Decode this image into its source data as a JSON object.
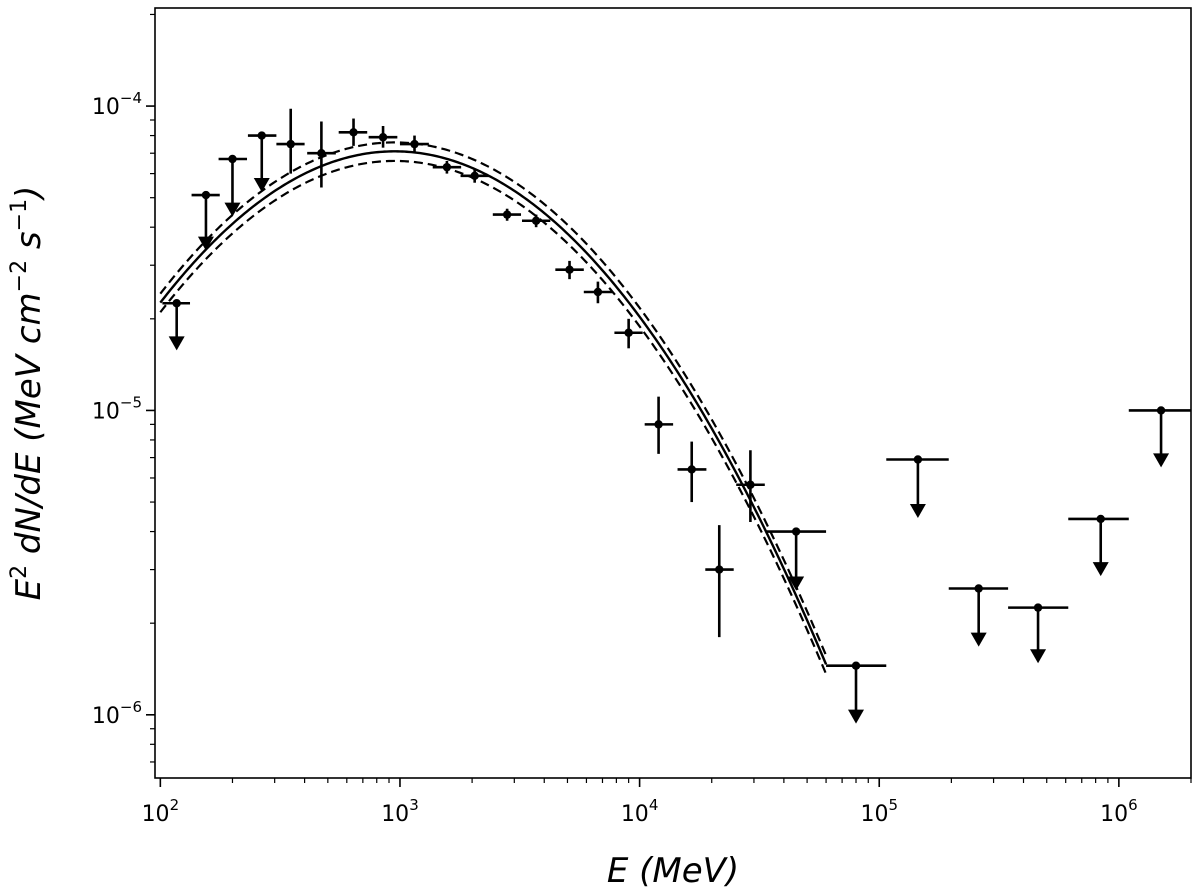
{
  "chart_data": {
    "type": "scatter",
    "title": "",
    "xlabel": "E (MeV)",
    "ylabel": "E² dN/dE (MeV cm⁻² s⁻¹)",
    "xlabel_parts": {
      "var": "E",
      "units": "(MeV)"
    },
    "ylabel_parts": {
      "pre": "E",
      "pre_sup": "2",
      "mid": " dN/dE (MeV cm",
      "sup1": "−2",
      "mid2": " s",
      "sup2": "−1",
      "post": ")"
    },
    "xscale": "log",
    "yscale": "log",
    "xlim": [
      95,
      2000000
    ],
    "ylim": [
      6.2e-07,
      0.00021
    ],
    "grid": false,
    "x_ticks": [
      {
        "value": 100,
        "base": "10",
        "exp": "2"
      },
      {
        "value": 1000,
        "base": "10",
        "exp": "3"
      },
      {
        "value": 10000,
        "base": "10",
        "exp": "4"
      },
      {
        "value": 100000,
        "base": "10",
        "exp": "5"
      },
      {
        "value": 1000000,
        "base": "10",
        "exp": "6"
      }
    ],
    "y_ticks": [
      {
        "value": 1e-06,
        "base": "10",
        "exp": "−6"
      },
      {
        "value": 1e-05,
        "base": "10",
        "exp": "−5"
      },
      {
        "value": 0.0001,
        "base": "10",
        "exp": "−4"
      }
    ],
    "model": {
      "type": "log-parabola",
      "peak_energy": 950,
      "peak_flux": 7.1e-05,
      "curvature": 0.52,
      "band_fraction": 0.07,
      "x_range": [
        100,
        60000
      ]
    },
    "points": [
      {
        "x": 117,
        "y": 2.25e-05,
        "xlo": 102,
        "xhi": 133,
        "ylo": 1.6e-05,
        "yhi": 2.3e-05,
        "ul": true
      },
      {
        "x": 155,
        "y": 5.1e-05,
        "xlo": 135,
        "xhi": 177,
        "ylo": 3.4e-05,
        "yhi": 5.2e-05,
        "ul": true
      },
      {
        "x": 200,
        "y": 6.7e-05,
        "xlo": 175,
        "xhi": 230,
        "ylo": 4.4e-05,
        "yhi": 6.8e-05,
        "ul": true
      },
      {
        "x": 265,
        "y": 8e-05,
        "xlo": 232,
        "xhi": 305,
        "ylo": 5.3e-05,
        "yhi": 8.1e-05,
        "ul": true
      },
      {
        "x": 350,
        "y": 7.5e-05,
        "xlo": 305,
        "xhi": 400,
        "ylo": 6e-05,
        "yhi": 9.8e-05,
        "ul": false
      },
      {
        "x": 470,
        "y": 7e-05,
        "xlo": 410,
        "xhi": 540,
        "ylo": 5.4e-05,
        "yhi": 8.9e-05,
        "ul": false
      },
      {
        "x": 640,
        "y": 8.2e-05,
        "xlo": 555,
        "xhi": 730,
        "ylo": 7.4e-05,
        "yhi": 9.1e-05,
        "ul": false
      },
      {
        "x": 850,
        "y": 7.9e-05,
        "xlo": 740,
        "xhi": 975,
        "ylo": 7.3e-05,
        "yhi": 8.6e-05,
        "ul": false
      },
      {
        "x": 1150,
        "y": 7.5e-05,
        "xlo": 1000,
        "xhi": 1320,
        "ylo": 7e-05,
        "yhi": 8e-05,
        "ul": false
      },
      {
        "x": 1570,
        "y": 6.3e-05,
        "xlo": 1370,
        "xhi": 1800,
        "ylo": 6e-05,
        "yhi": 6.6e-05,
        "ul": false
      },
      {
        "x": 2050,
        "y": 5.9e-05,
        "xlo": 1790,
        "xhi": 2350,
        "ylo": 5.6e-05,
        "yhi": 6.2e-05,
        "ul": false
      },
      {
        "x": 2800,
        "y": 4.4e-05,
        "xlo": 2440,
        "xhi": 3200,
        "ylo": 4.2e-05,
        "yhi": 4.6e-05,
        "ul": false
      },
      {
        "x": 3700,
        "y": 4.2e-05,
        "xlo": 3230,
        "xhi": 4240,
        "ylo": 4e-05,
        "yhi": 4.4e-05,
        "ul": false
      },
      {
        "x": 5100,
        "y": 2.9e-05,
        "xlo": 4450,
        "xhi": 5850,
        "ylo": 2.7e-05,
        "yhi": 3.1e-05,
        "ul": false
      },
      {
        "x": 6700,
        "y": 2.45e-05,
        "xlo": 5850,
        "xhi": 7700,
        "ylo": 2.25e-05,
        "yhi": 2.65e-05,
        "ul": false
      },
      {
        "x": 9000,
        "y": 1.8e-05,
        "xlo": 7850,
        "xhi": 10300,
        "ylo": 1.6e-05,
        "yhi": 2e-05,
        "ul": false
      },
      {
        "x": 12000,
        "y": 9e-06,
        "xlo": 10500,
        "xhi": 13800,
        "ylo": 7.2e-06,
        "yhi": 1.11e-05,
        "ul": false
      },
      {
        "x": 16500,
        "y": 6.4e-06,
        "xlo": 14400,
        "xhi": 19000,
        "ylo": 5e-06,
        "yhi": 7.9e-06,
        "ul": false
      },
      {
        "x": 21500,
        "y": 3e-06,
        "xlo": 18800,
        "xhi": 24700,
        "ylo": 1.8e-06,
        "yhi": 4.2e-06,
        "ul": false
      },
      {
        "x": 29000,
        "y": 5.7e-06,
        "xlo": 25300,
        "xhi": 33300,
        "ylo": 4.3e-06,
        "yhi": 7.4e-06,
        "ul": false
      },
      {
        "x": 45000,
        "y": 4e-06,
        "xlo": 33500,
        "xhi": 60000,
        "ylo": 2.6e-06,
        "yhi": 4e-06,
        "ul": true
      },
      {
        "x": 80000,
        "y": 1.45e-06,
        "xlo": 60000,
        "xhi": 107000,
        "ylo": 9.5e-07,
        "yhi": 1.45e-06,
        "ul": true
      },
      {
        "x": 145000,
        "y": 6.9e-06,
        "xlo": 107000,
        "xhi": 195000,
        "ylo": 4.5e-06,
        "yhi": 6.9e-06,
        "ul": true
      },
      {
        "x": 260000,
        "y": 2.6e-06,
        "xlo": 195000,
        "xhi": 345000,
        "ylo": 1.7e-06,
        "yhi": 2.6e-06,
        "ul": true
      },
      {
        "x": 460000,
        "y": 2.25e-06,
        "xlo": 345000,
        "xhi": 615000,
        "ylo": 1.5e-06,
        "yhi": 2.25e-06,
        "ul": true
      },
      {
        "x": 840000,
        "y": 4.4e-06,
        "xlo": 615000,
        "xhi": 1100000,
        "ylo": 2.9e-06,
        "yhi": 4.4e-06,
        "ul": true
      },
      {
        "x": 1500000,
        "y": 1e-05,
        "xlo": 1100000,
        "xhi": 2000000,
        "ylo": 6.6e-06,
        "yhi": 1e-05,
        "ul": true
      }
    ]
  }
}
